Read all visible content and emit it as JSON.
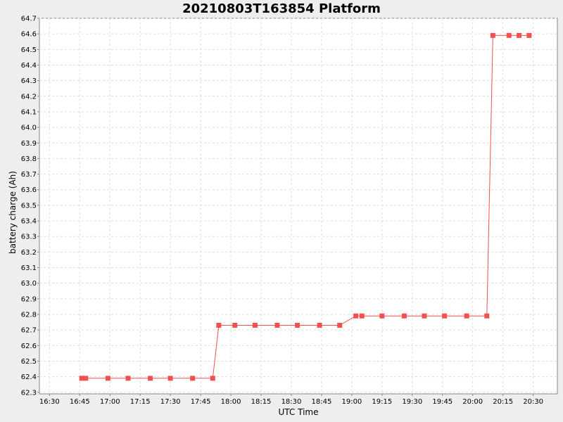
{
  "chart_data": {
    "type": "line",
    "title": "20210803T163854 Platform",
    "xlabel": "UTC Time",
    "ylabel": "battery charge (Ah)",
    "xlim": [
      "16:25",
      "20:42"
    ],
    "ylim": [
      62.29,
      64.7
    ],
    "x_ticks": [
      "16:30",
      "16:45",
      "17:00",
      "17:15",
      "17:30",
      "17:45",
      "18:00",
      "18:15",
      "18:30",
      "18:45",
      "19:00",
      "19:15",
      "19:30",
      "19:45",
      "20:00",
      "20:15",
      "20:30"
    ],
    "y_ticks": [
      62.3,
      62.4,
      62.5,
      62.6,
      62.7,
      62.8,
      62.9,
      63.0,
      63.1,
      63.2,
      63.3,
      63.4,
      63.5,
      63.6,
      63.7,
      63.8,
      63.9,
      64.0,
      64.1,
      64.2,
      64.3,
      64.4,
      64.5,
      64.6,
      64.7
    ],
    "grid": true,
    "legend": "none",
    "series": [
      {
        "color": "#f05050",
        "marker": "square",
        "points": [
          {
            "x": "16:46",
            "y": 62.39
          },
          {
            "x": "16:48",
            "y": 62.39
          },
          {
            "x": "16:59",
            "y": 62.39
          },
          {
            "x": "17:09",
            "y": 62.39
          },
          {
            "x": "17:20",
            "y": 62.39
          },
          {
            "x": "17:30",
            "y": 62.39
          },
          {
            "x": "17:41",
            "y": 62.39
          },
          {
            "x": "17:51",
            "y": 62.39
          },
          {
            "x": "17:54",
            "y": 62.73
          },
          {
            "x": "18:02",
            "y": 62.73
          },
          {
            "x": "18:12",
            "y": 62.73
          },
          {
            "x": "18:23",
            "y": 62.73
          },
          {
            "x": "18:33",
            "y": 62.73
          },
          {
            "x": "18:44",
            "y": 62.73
          },
          {
            "x": "18:54",
            "y": 62.73
          },
          {
            "x": "19:02",
            "y": 62.79
          },
          {
            "x": "19:05",
            "y": 62.79
          },
          {
            "x": "19:15",
            "y": 62.79
          },
          {
            "x": "19:26",
            "y": 62.79
          },
          {
            "x": "19:36",
            "y": 62.79
          },
          {
            "x": "19:46",
            "y": 62.79
          },
          {
            "x": "19:57",
            "y": 62.79
          },
          {
            "x": "20:07",
            "y": 62.79
          },
          {
            "x": "20:10",
            "y": 64.59
          },
          {
            "x": "20:18",
            "y": 64.59
          },
          {
            "x": "20:23",
            "y": 64.59
          },
          {
            "x": "20:28",
            "y": 64.59
          }
        ]
      }
    ]
  }
}
